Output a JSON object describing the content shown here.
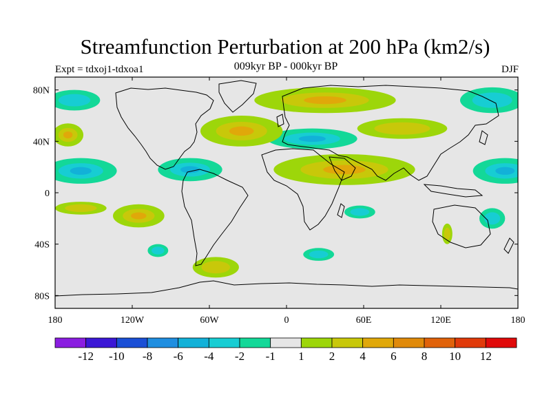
{
  "title": "Streamfunction Perturbation at 200 hPa (km2/s)",
  "subtitle": "009kyr BP - 000kyr BP",
  "experiment": "Expt = tdxoj1-tdxoa1",
  "season": "DJF",
  "map": {
    "projection": "cylindrical-equidistant",
    "lon_range": [
      180,
      -180
    ],
    "lat_range": [
      -90,
      90
    ],
    "ocean_color": "#e6e6e6",
    "coastline_color": "#000000",
    "lon_ticks": [
      {
        "lon": -180,
        "label": "180"
      },
      {
        "lon": -120,
        "label": "120W"
      },
      {
        "lon": -60,
        "label": "60W"
      },
      {
        "lon": 0,
        "label": "0"
      },
      {
        "lon": 60,
        "label": "60E"
      },
      {
        "lon": 120,
        "label": "120E"
      },
      {
        "lon": 180,
        "label": "180"
      }
    ],
    "lat_ticks": [
      {
        "lat": 80,
        "label": "80N"
      },
      {
        "lat": 40,
        "label": "40N"
      },
      {
        "lat": 0,
        "label": "0"
      },
      {
        "lat": -40,
        "label": "40S"
      },
      {
        "lat": -80,
        "label": "80S"
      }
    ]
  },
  "colorbar": {
    "colors": [
      "#8a1de0",
      "#3b17d6",
      "#1a4fd6",
      "#1f8ee0",
      "#12b1d8",
      "#17cdd3",
      "#13d898",
      "#e6e6e6",
      "#9dd60a",
      "#c8c80a",
      "#e0a80a",
      "#e08a0a",
      "#e0620a",
      "#e03a0a",
      "#e00a0a"
    ],
    "labels": [
      "-12",
      "-10",
      "-8",
      "-6",
      "-4",
      "-2",
      "-1",
      "1",
      "2",
      "4",
      "6",
      "8",
      "10",
      "12"
    ]
  },
  "chart_data": {
    "type": "heatmap",
    "variable": "Streamfunction Perturbation at 200 hPa",
    "units": "km2/s",
    "levels": [
      -12,
      -10,
      -8,
      -6,
      -4,
      -2,
      -1,
      1,
      2,
      4,
      6,
      8,
      10,
      12
    ],
    "features": [
      {
        "name": "Arctic Europe high",
        "lon": 30,
        "lat": 72,
        "rx": 55,
        "ry": 10,
        "value": 4
      },
      {
        "name": "Europe low",
        "lon": 20,
        "lat": 42,
        "rx": 35,
        "ry": 8,
        "value": -4
      },
      {
        "name": "Atlantic-Europe ridge",
        "lon": -35,
        "lat": 48,
        "rx": 32,
        "ry": 12,
        "value": 4
      },
      {
        "name": "North Africa - Arabia high",
        "lon": 45,
        "lat": 18,
        "rx": 55,
        "ry": 12,
        "value": 4
      },
      {
        "name": "Central America low",
        "lon": -75,
        "lat": 18,
        "rx": 25,
        "ry": 9,
        "value": -4
      },
      {
        "name": "North Pacific east high",
        "lon": -170,
        "lat": 45,
        "rx": 12,
        "ry": 9,
        "value": 4
      },
      {
        "name": "Central Pacific low",
        "lon": -160,
        "lat": 17,
        "rx": 28,
        "ry": 10,
        "value": -4
      },
      {
        "name": "West Pacific low",
        "lon": 170,
        "lat": 17,
        "rx": 25,
        "ry": 10,
        "value": -4
      },
      {
        "name": "Siberia - Asia high",
        "lon": 90,
        "lat": 50,
        "rx": 35,
        "ry": 8,
        "value": 2
      },
      {
        "name": "Arctic Pacific low",
        "lon": 160,
        "lat": 72,
        "rx": 25,
        "ry": 10,
        "value": -2
      },
      {
        "name": "Arctic Atlantic low",
        "lon": -165,
        "lat": 72,
        "rx": 20,
        "ry": 8,
        "value": -2
      },
      {
        "name": "South Pacific east high",
        "lon": -115,
        "lat": -18,
        "rx": 20,
        "ry": 9,
        "value": 4
      },
      {
        "name": "South Pacific west high",
        "lon": -160,
        "lat": -12,
        "rx": 20,
        "ry": 5,
        "value": 2
      },
      {
        "name": "South Atlantic high",
        "lon": -55,
        "lat": -58,
        "rx": 18,
        "ry": 8,
        "value": 2
      },
      {
        "name": "Indian Ocean low",
        "lon": 57,
        "lat": -15,
        "rx": 12,
        "ry": 5,
        "value": -2
      },
      {
        "name": "Southern Ocean low",
        "lon": 25,
        "lat": -48,
        "rx": 12,
        "ry": 5,
        "value": -2
      },
      {
        "name": "Pacific low south",
        "lon": 160,
        "lat": -20,
        "rx": 10,
        "ry": 8,
        "value": -2
      },
      {
        "name": "Australia high",
        "lon": 125,
        "lat": -32,
        "rx": 4,
        "ry": 8,
        "value": 2
      },
      {
        "name": "South Pacific low",
        "lon": -100,
        "lat": -45,
        "rx": 8,
        "ry": 5,
        "value": -2
      }
    ]
  }
}
